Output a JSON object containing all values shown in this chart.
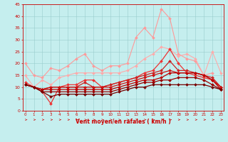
{
  "xlabel": "Vent moyen/en rafales ( km/h )",
  "xlim": [
    -0.3,
    23.3
  ],
  "ylim": [
    0,
    45
  ],
  "yticks": [
    0,
    5,
    10,
    15,
    20,
    25,
    30,
    35,
    40,
    45
  ],
  "xticks": [
    0,
    1,
    2,
    3,
    4,
    5,
    6,
    7,
    8,
    9,
    10,
    11,
    12,
    13,
    14,
    15,
    16,
    17,
    18,
    19,
    20,
    21,
    22,
    23
  ],
  "background_color": "#c5eeee",
  "grid_color": "#99cccc",
  "series": [
    {
      "x": [
        0,
        1,
        2,
        3,
        4,
        5,
        6,
        7,
        8,
        9,
        10,
        11,
        12,
        13,
        14,
        15,
        16,
        17,
        18,
        19,
        20,
        21,
        22
      ],
      "y": [
        20,
        15,
        14,
        18,
        17,
        19,
        22,
        24,
        19,
        17,
        19,
        19,
        20,
        31,
        35,
        31,
        43,
        39,
        24,
        22,
        21,
        15,
        16
      ],
      "color": "#ff9999",
      "lw": 0.8,
      "ms": 2.0
    },
    {
      "x": [
        0,
        1,
        2,
        3,
        4,
        5,
        6,
        7,
        8,
        9,
        10,
        11,
        12,
        13,
        14,
        15,
        16,
        17,
        18,
        19,
        20,
        21,
        22,
        23
      ],
      "y": [
        15,
        10,
        13,
        11,
        14,
        15,
        16,
        16,
        16,
        16,
        16,
        16,
        17,
        19,
        22,
        24,
        27,
        26,
        23,
        24,
        22,
        15,
        25,
        16
      ],
      "color": "#ffaaaa",
      "lw": 0.8,
      "ms": 2.0
    },
    {
      "x": [
        0,
        1,
        2,
        3,
        4,
        5,
        6,
        7,
        8,
        9,
        10,
        11,
        12,
        13,
        14,
        15,
        16,
        17,
        18,
        19,
        20,
        21,
        22,
        23
      ],
      "y": [
        12,
        10,
        8,
        3,
        10,
        11,
        11,
        13,
        13,
        10,
        11,
        12,
        13,
        14,
        16,
        17,
        21,
        26,
        20,
        16,
        15,
        14,
        13,
        10
      ],
      "color": "#ee3333",
      "lw": 0.9,
      "ms": 2.0
    },
    {
      "x": [
        0,
        1,
        2,
        3,
        4,
        5,
        6,
        7,
        8,
        9,
        10,
        11,
        12,
        13,
        14,
        15,
        16,
        17,
        18,
        19,
        20,
        21,
        22,
        23
      ],
      "y": [
        11,
        10,
        9,
        10,
        10,
        10,
        10,
        12,
        10,
        10,
        11,
        12,
        13,
        14,
        15,
        16,
        17,
        21,
        17,
        17,
        16,
        15,
        14,
        10
      ],
      "color": "#cc2222",
      "lw": 0.9,
      "ms": 2.0
    },
    {
      "x": [
        0,
        1,
        2,
        3,
        4,
        5,
        6,
        7,
        8,
        9,
        10,
        11,
        12,
        13,
        14,
        15,
        16,
        17,
        18,
        19,
        20,
        21,
        22,
        23
      ],
      "y": [
        11,
        10,
        9,
        10,
        10,
        10,
        10,
        10,
        10,
        10,
        10,
        11,
        12,
        13,
        14,
        15,
        16,
        17,
        16,
        16,
        16,
        15,
        13,
        10
      ],
      "color": "#cc1111",
      "lw": 0.9,
      "ms": 2.0
    },
    {
      "x": [
        0,
        1,
        2,
        3,
        4,
        5,
        6,
        7,
        8,
        9,
        10,
        11,
        12,
        13,
        14,
        15,
        16,
        17,
        18,
        19,
        20,
        21,
        22,
        23
      ],
      "y": [
        11,
        10,
        9,
        9,
        9,
        9,
        9,
        9,
        9,
        9,
        9,
        10,
        11,
        12,
        13,
        13,
        14,
        16,
        16,
        16,
        16,
        15,
        13,
        9
      ],
      "color": "#bb0000",
      "lw": 0.9,
      "ms": 2.0
    },
    {
      "x": [
        0,
        1,
        2,
        3,
        4,
        5,
        6,
        7,
        8,
        9,
        10,
        11,
        12,
        13,
        14,
        15,
        16,
        17,
        18,
        19,
        20,
        21,
        22,
        23
      ],
      "y": [
        11,
        10,
        8,
        8,
        8,
        8,
        8,
        8,
        8,
        8,
        8,
        9,
        10,
        11,
        12,
        12,
        13,
        13,
        14,
        14,
        14,
        13,
        11,
        9
      ],
      "color": "#990000",
      "lw": 0.9,
      "ms": 2.0
    },
    {
      "x": [
        0,
        1,
        2,
        3,
        4,
        5,
        6,
        7,
        8,
        9,
        10,
        11,
        12,
        13,
        14,
        15,
        16,
        17,
        18,
        19,
        20,
        21,
        22,
        23
      ],
      "y": [
        11,
        10,
        8,
        6,
        7,
        7,
        7,
        7,
        7,
        7,
        7,
        8,
        9,
        10,
        10,
        11,
        11,
        11,
        11,
        11,
        11,
        11,
        10,
        9
      ],
      "color": "#770000",
      "lw": 0.9,
      "ms": 2.0
    }
  ]
}
